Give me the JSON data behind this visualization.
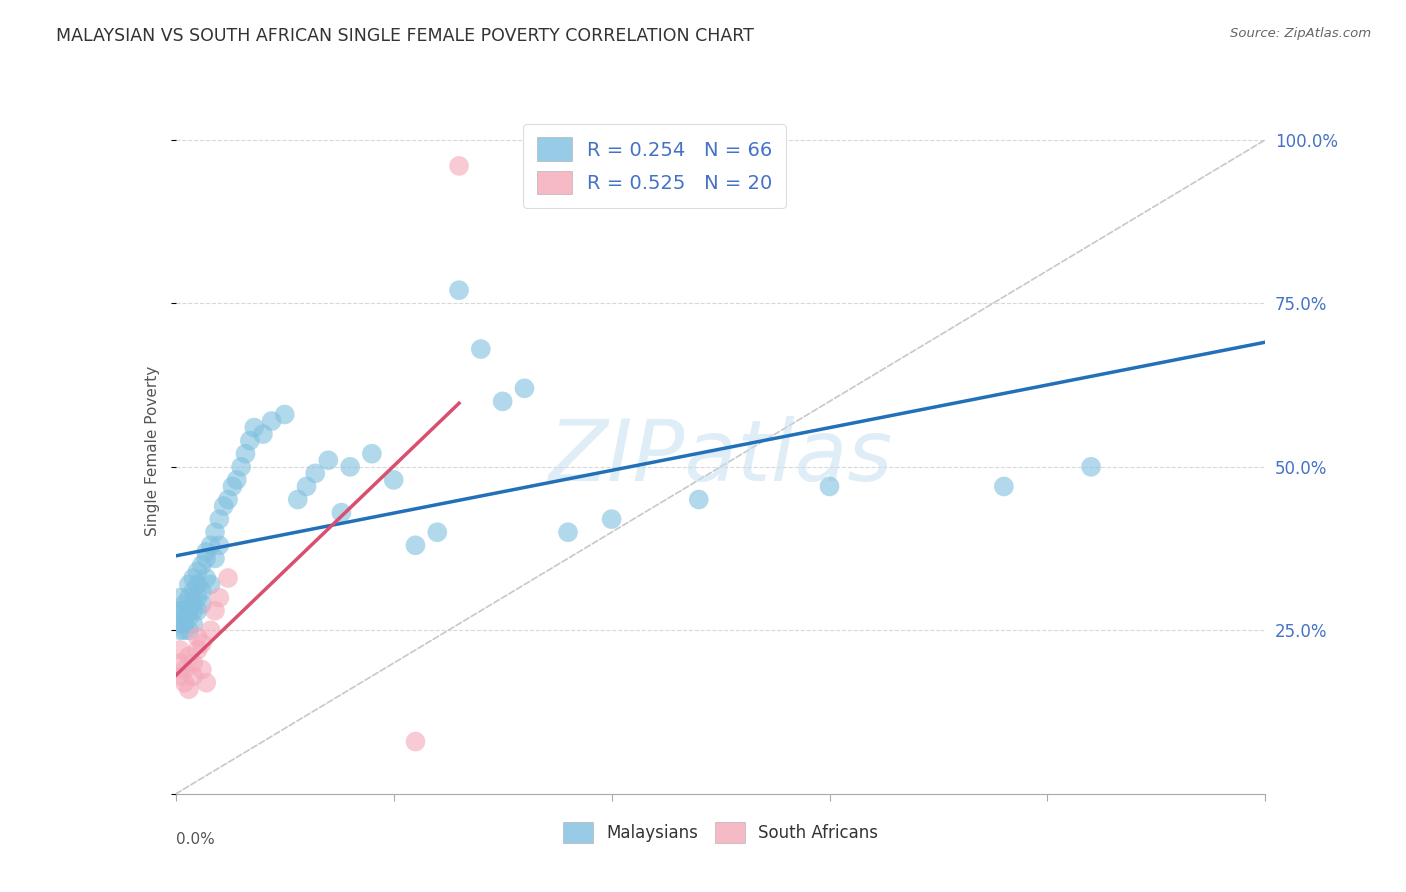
{
  "title": "MALAYSIAN VS SOUTH AFRICAN SINGLE FEMALE POVERTY CORRELATION CHART",
  "source": "Source: ZipAtlas.com",
  "ylabel": "Single Female Poverty",
  "xlim": [
    0.0,
    0.25
  ],
  "ylim": [
    0.0,
    1.05
  ],
  "r_malaysian": 0.254,
  "n_malaysian": 66,
  "r_south_african": 0.525,
  "n_south_african": 20,
  "malaysian_color": "#7fbfdf",
  "south_african_color": "#f4a8b8",
  "trendline_malaysian_color": "#2270b8",
  "trendline_south_african_color": "#d94f70",
  "diagonal_color": "#c8c8c8",
  "background_color": "#ffffff",
  "grid_color": "#d8d8d8",
  "legend_label_1": "Malaysians",
  "legend_label_2": "South Africans",
  "watermark": "ZIPatlas",
  "my_x": [
    0.001,
    0.001,
    0.001,
    0.001,
    0.002,
    0.002,
    0.002,
    0.002,
    0.002,
    0.003,
    0.003,
    0.003,
    0.003,
    0.003,
    0.004,
    0.004,
    0.004,
    0.004,
    0.004,
    0.005,
    0.005,
    0.005,
    0.005,
    0.006,
    0.006,
    0.006,
    0.007,
    0.007,
    0.007,
    0.008,
    0.008,
    0.009,
    0.009,
    0.01,
    0.01,
    0.011,
    0.012,
    0.013,
    0.014,
    0.015,
    0.016,
    0.017,
    0.018,
    0.02,
    0.022,
    0.025,
    0.028,
    0.03,
    0.032,
    0.035,
    0.038,
    0.04,
    0.045,
    0.05,
    0.055,
    0.06,
    0.065,
    0.07,
    0.075,
    0.08,
    0.09,
    0.1,
    0.12,
    0.15,
    0.19,
    0.21
  ],
  "my_y": [
    0.28,
    0.3,
    0.26,
    0.25,
    0.28,
    0.27,
    0.29,
    0.25,
    0.26,
    0.3,
    0.28,
    0.32,
    0.27,
    0.25,
    0.31,
    0.29,
    0.33,
    0.28,
    0.26,
    0.32,
    0.3,
    0.28,
    0.34,
    0.35,
    0.29,
    0.31,
    0.37,
    0.33,
    0.36,
    0.38,
    0.32,
    0.4,
    0.36,
    0.42,
    0.38,
    0.44,
    0.45,
    0.47,
    0.48,
    0.5,
    0.52,
    0.54,
    0.56,
    0.55,
    0.57,
    0.58,
    0.45,
    0.47,
    0.49,
    0.51,
    0.43,
    0.5,
    0.52,
    0.48,
    0.38,
    0.4,
    0.77,
    0.68,
    0.6,
    0.62,
    0.4,
    0.42,
    0.45,
    0.47,
    0.47,
    0.5
  ],
  "sa_x": [
    0.001,
    0.001,
    0.001,
    0.002,
    0.002,
    0.003,
    0.003,
    0.004,
    0.004,
    0.005,
    0.005,
    0.006,
    0.006,
    0.007,
    0.008,
    0.009,
    0.01,
    0.012,
    0.055,
    0.065
  ],
  "sa_y": [
    0.18,
    0.2,
    0.22,
    0.17,
    0.19,
    0.16,
    0.21,
    0.18,
    0.2,
    0.22,
    0.24,
    0.19,
    0.23,
    0.17,
    0.25,
    0.28,
    0.3,
    0.33,
    0.08,
    0.96
  ]
}
